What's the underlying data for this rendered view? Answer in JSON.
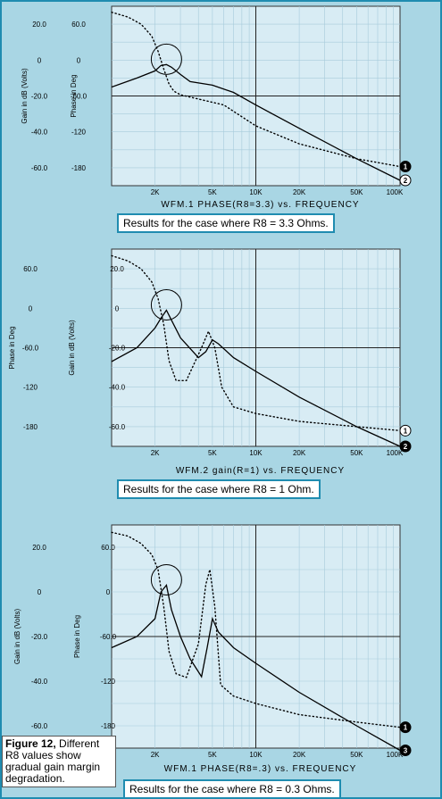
{
  "figure_note": {
    "label": "Figure 12,",
    "text": " Different R8 values show gradual gain margin degradation."
  },
  "chart_data": [
    {
      "type": "line",
      "panel": 1,
      "caption": "Results for the case where R8 = 3.3 Ohms.",
      "x_title": "WFM.1   PHASE(R8=3.3) vs. FREQUENCY",
      "x_ticks": [
        "2K",
        "5K",
        "10K",
        "20K",
        "50K",
        "100K"
      ],
      "gain_label": "Gain in dB (Volts)",
      "gain_ticks": [
        "20.0",
        "0",
        "-20.0",
        "-40.0",
        "-60.0"
      ],
      "phase_label": "Phase in Deg",
      "phase_ticks": [
        "60.0",
        "0",
        "-60.0",
        "-120",
        "-180"
      ],
      "xscale": "log",
      "xlim": [
        1000,
        100000
      ],
      "gain_ylim": [
        -70,
        30
      ],
      "phase_ylim": [
        -210,
        90
      ],
      "markers": [
        "1",
        "2"
      ],
      "series": [
        {
          "style": "solid",
          "x": [
            1000,
            1500,
            2000,
            2200,
            2400,
            2600,
            3000,
            3500,
            5000,
            7000,
            10000,
            20000,
            50000,
            100000
          ],
          "y": [
            -15,
            -10,
            -6,
            -3,
            -2.5,
            -4,
            -8,
            -12,
            -14,
            -18,
            -25,
            -38,
            -55,
            -67
          ]
        },
        {
          "style": "dotted",
          "x": [
            1000,
            1300,
            1600,
            1900,
            2100,
            2300,
            2500,
            2700,
            3000,
            4000,
            6000,
            10000,
            20000,
            50000,
            100000
          ],
          "y": [
            80,
            72,
            60,
            40,
            15,
            -15,
            -40,
            -52,
            -58,
            -65,
            -75,
            -110,
            -140,
            -165,
            -178
          ]
        }
      ]
    },
    {
      "type": "line",
      "panel": 2,
      "caption": "Results for the case where R8 = 1 Ohm.",
      "x_title": "WFM.2  gain(R=1) vs. FREQUENCY",
      "x_ticks": [
        "2K",
        "5K",
        "10K",
        "20K",
        "50K",
        "100K"
      ],
      "gain_label": "Gain in dB (Volts)",
      "gain_ticks": [
        "20.0",
        "0",
        "-20.0",
        "-40.0",
        "-60.0"
      ],
      "phase_label": "Phase in Deg",
      "phase_ticks": [
        "60.0",
        "0",
        "-60.0",
        "-120",
        "-180"
      ],
      "xscale": "log",
      "xlim": [
        1000,
        100000
      ],
      "gain_ylim": [
        -70,
        30
      ],
      "phase_ylim": [
        -210,
        90
      ],
      "markers": [
        "1",
        "2"
      ],
      "series": [
        {
          "style": "solid",
          "x": [
            1000,
            1500,
            2000,
            2200,
            2400,
            2600,
            3000,
            4000,
            4500,
            5000,
            5500,
            7000,
            10000,
            20000,
            50000,
            100000
          ],
          "y": [
            -27,
            -20,
            -10,
            -5,
            -1,
            -6,
            -15,
            -25,
            -22,
            -16,
            -18,
            -25,
            -32,
            -45,
            -60,
            -70
          ]
        },
        {
          "style": "dotted",
          "x": [
            1000,
            1300,
            1600,
            1900,
            2100,
            2300,
            2500,
            2800,
            3300,
            4200,
            4700,
            5200,
            5800,
            7000,
            10000,
            20000,
            50000,
            100000
          ],
          "y": [
            80,
            72,
            60,
            40,
            15,
            -25,
            -80,
            -110,
            -110,
            -60,
            -35,
            -60,
            -120,
            -150,
            -160,
            -172,
            -180,
            -186
          ]
        }
      ]
    },
    {
      "type": "line",
      "panel": 3,
      "caption": "Results for the case where R8 = 0.3 Ohms.",
      "x_title": "WFM.1   PHASE(R8=.3) vs. FREQUENCY",
      "x_ticks": [
        "2K",
        "5K",
        "10K",
        "20K",
        "50K",
        "100K"
      ],
      "gain_label": "Gain in dB (Volts)",
      "gain_ticks": [
        "20.0",
        "0",
        "-20.0",
        "-40.0",
        "-60.0"
      ],
      "phase_label": "Phase in Deg",
      "phase_ticks": [
        "60.0",
        "0",
        "-60.0",
        "-120",
        "-180"
      ],
      "xscale": "log",
      "xlim": [
        1000,
        100000
      ],
      "gain_ylim": [
        -70,
        30
      ],
      "phase_ylim": [
        -210,
        90
      ],
      "markers": [
        "1",
        "3"
      ],
      "series": [
        {
          "style": "solid",
          "x": [
            1000,
            1500,
            2000,
            2200,
            2400,
            2600,
            3000,
            3500,
            4200,
            4600,
            5000,
            5500,
            7000,
            10000,
            20000,
            50000,
            100000
          ],
          "y": [
            -25,
            -20,
            -12,
            0,
            3,
            -8,
            -20,
            -30,
            -38,
            -25,
            -12,
            -18,
            -25,
            -32,
            -45,
            -60,
            -71
          ]
        },
        {
          "style": "dotted",
          "x": [
            1000,
            1300,
            1600,
            1900,
            2100,
            2300,
            2500,
            2800,
            3300,
            4000,
            4500,
            4800,
            5200,
            5700,
            7000,
            10000,
            20000,
            50000,
            100000
          ],
          "y": [
            80,
            75,
            65,
            50,
            30,
            -20,
            -80,
            -110,
            -115,
            -70,
            10,
            30,
            -20,
            -125,
            -140,
            -150,
            -165,
            -175,
            -182
          ]
        }
      ]
    }
  ]
}
